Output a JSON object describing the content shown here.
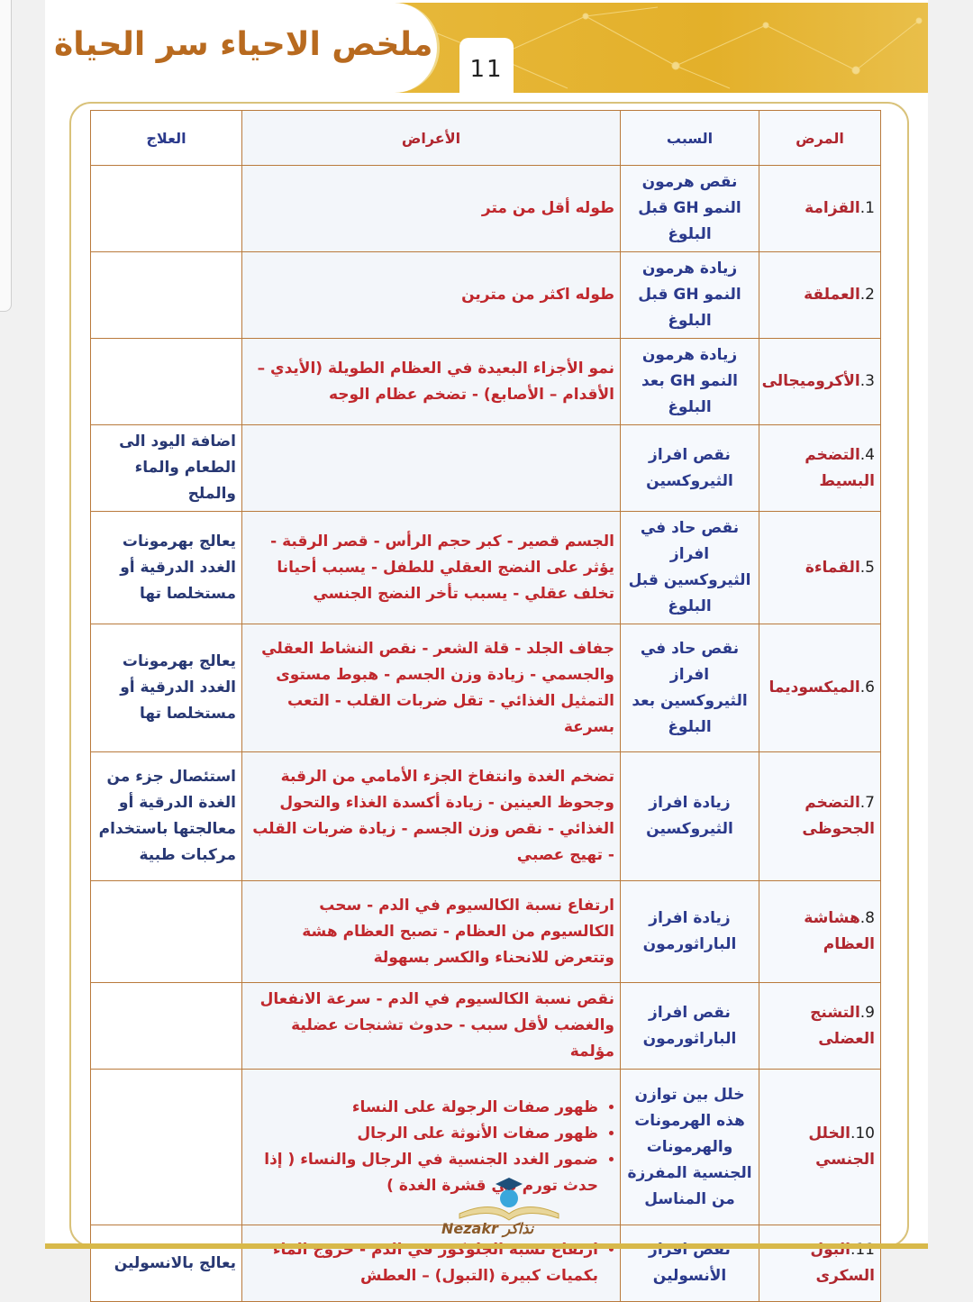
{
  "header": {
    "title": "ملخص الاحياء سر الحياة",
    "page_number": "11"
  },
  "table": {
    "headers": {
      "disease": "المرض",
      "cause": "السبب",
      "symptoms": "الأعراض",
      "treatment": "العلاج"
    },
    "rows": [
      {
        "num": "1.",
        "disease": "القزامة",
        "cause": "نقص هرمون النمو GH قبل البلوغ",
        "symptoms": [
          "طوله أقل من متر"
        ],
        "treatment": ""
      },
      {
        "num": "2.",
        "disease": "العملقة",
        "cause": "زيادة هرمون النمو GH قبل البلوغ",
        "symptoms": [
          "طوله اكثر من مترين"
        ],
        "treatment": ""
      },
      {
        "num": "3.",
        "disease": "الأكروميجالى",
        "cause": "زيادة هرمون النمو GH بعد البلوغ",
        "symptoms": [
          "نمو الأجزاء البعيدة في العظام الطويلة (الأيدي – الأقدام – الأصابع) - تضخم عظام الوجه"
        ],
        "treatment": ""
      },
      {
        "num": "4.",
        "disease": "التضخم البسيط",
        "cause": "نقص افراز الثيروكسين",
        "symptoms": [
          ""
        ],
        "treatment": "اضافة اليود الى الطعام والماء والملح"
      },
      {
        "num": "5.",
        "disease": "القماءة",
        "cause": "نقص حاد في افراز الثيروكسين قبل البلوغ",
        "symptoms": [
          "الجسم قصير - كبر حجم الرأس - قصر الرقبة - يؤثر على النضج العقلي للطفل - يسبب أحيانا تخلف عقلي - يسبب تأخر النضج الجنسي"
        ],
        "treatment": "يعالج بهرمونات الغدد الدرقية أو مستخلصا تها"
      },
      {
        "num": "6.",
        "disease": "الميكسوديما",
        "cause": "نقص حاد في افراز الثيروكسين بعد البلوغ",
        "symptoms": [
          "جفاف الجلد - قلة الشعر - نقص النشاط العقلي والجسمي - زيادة وزن الجسم - هبوط مستوى التمثيل الغذائي - تقل ضربات القلب - التعب بسرعة"
        ],
        "treatment": "يعالج بهرمونات الغدد الدرقية أو مستخلصا تها"
      },
      {
        "num": "7.",
        "disease": "التضخم الجحوظى",
        "cause": "زيادة افراز الثيروكسين",
        "symptoms": [
          "تضخم الغدة وانتفاخ الجزء الأمامي من الرقبة وجحوظ العينين - زيادة أكسدة الغذاء والتحول الغذائي - نقص وزن الجسم - زيادة ضربات القلب - تهيج عصبي"
        ],
        "treatment": "استئصال جزء من الغدة الدرقية أو معالجتها باستخدام مركبات طبية"
      },
      {
        "num": "8.",
        "disease": "هشاشة العظام",
        "cause": "زيادة افراز الباراثورمون",
        "symptoms": [
          "ارتفاع نسبة الكالسيوم في الدم - سحب الكالسيوم من العظام - تصبح العظام هشة وتتعرض للانحناء والكسر بسهولة"
        ],
        "treatment": ""
      },
      {
        "num": "9.",
        "disease": "التشنج العضلى",
        "cause": "نقص افراز الباراثورمون",
        "symptoms": [
          "نقص نسبة الكالسيوم في الدم - سرعة الانفعال والغضب لأقل سبب - حدوث تشنجات عضلية مؤلمة"
        ],
        "treatment": ""
      },
      {
        "num": "10.",
        "disease": "الخلل الجنسي",
        "cause": "خلل بين توازن هذه الهرمونات والهرمونات الجنسية المفرزة من المناسل",
        "symptoms": [
          "ظهور صفات الرجولة على النساء",
          "ظهور صفات الأنوثة على الرجال",
          "ضمور الغدد الجنسية في الرجال والنساء ( إذا حدث تورم في قشرة الغدة )"
        ],
        "treatment": ""
      },
      {
        "num": "11.",
        "disease": "البول السكرى",
        "cause": "نقص افراز الأنسولين",
        "symptoms": [
          "ارتفاع نسبة الجلوكوز في الدم - خروج الماء بكميات كبيرة (التبول) – العطش"
        ],
        "treatment": "يعالج بالانسولين"
      }
    ]
  },
  "watermark": {
    "text": "Nezakr نذاكر"
  },
  "colors": {
    "gold": "#e3b02a",
    "title": "#b86a1f",
    "disease": "#b0272f",
    "cause": "#2b3a8c",
    "symptoms": "#c0282d",
    "border": "#b97a3c"
  }
}
